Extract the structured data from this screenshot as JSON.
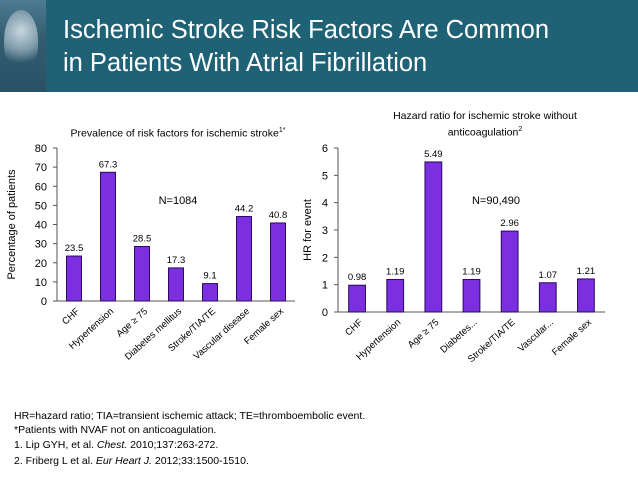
{
  "header": {
    "title_line1": "Ischemic Stroke Risk Factors Are Common",
    "title_line2": "in Patients With Atrial Fibrillation"
  },
  "colors": {
    "header_bg": "#1f6276",
    "bar_fill": "#7b2fe0",
    "bar_stroke": "#2a0a5a"
  },
  "chart_data": [
    {
      "type": "bar",
      "title": "Prevalence of risk factors for ischemic stroke",
      "title_sup": "1*",
      "categories": [
        "CHF",
        "Hypertension",
        "Age ≥ 75",
        "Diabetes mellitus",
        "Stroke/TIA/TE",
        "Vascular disease",
        "Female sex"
      ],
      "values": [
        23.5,
        67.3,
        28.5,
        17.3,
        9.1,
        44.2,
        40.8
      ],
      "value_labels": [
        "23.5",
        "67.3",
        "28.5",
        "17.3",
        "9.1",
        "44.2",
        "40.8"
      ],
      "annotation": "N=1084",
      "xlabel": "",
      "ylabel": "Percentage of patients",
      "ylim": [
        0,
        80
      ],
      "yticks": [
        0,
        10,
        20,
        30,
        40,
        50,
        60,
        70,
        80
      ]
    },
    {
      "type": "bar",
      "title": "Hazard ratio for ischemic stroke without anticoagulation",
      "title_line1": "Hazard ratio for ischemic stroke without",
      "title_line2": "anticoagulation",
      "title_sup": "2",
      "categories": [
        "CHF",
        "Hypertension",
        "Age ≥ 75",
        "Diabetes...",
        "Stroke/TIA/TE",
        "Vascular...",
        "Female sex"
      ],
      "values": [
        0.98,
        1.19,
        5.49,
        1.19,
        2.96,
        1.07,
        1.21
      ],
      "value_labels": [
        "0.98",
        "1.19",
        "5.49",
        "1.19",
        "2.96",
        "1.07",
        "1.21"
      ],
      "annotation": "N=90,490",
      "xlabel": "",
      "ylabel": "HR for event",
      "ylim": [
        0,
        6
      ],
      "yticks": [
        0,
        1,
        2,
        3,
        4,
        5,
        6
      ]
    }
  ],
  "footnotes": {
    "abbrev": "HR=hazard ratio; TIA=transient ischemic attack; TE=thromboembolic event.",
    "star": "*Patients with NVAF not on anticoagulation.",
    "ref1_pre": "1. Lip GYH, et al. ",
    "ref1_journal": "Chest.",
    "ref1_post": " 2010;137:263-272.",
    "ref2_pre": "2. Friberg L et al. ",
    "ref2_journal": "Eur Heart J.",
    "ref2_post": " 2012;33:1500-1510."
  }
}
